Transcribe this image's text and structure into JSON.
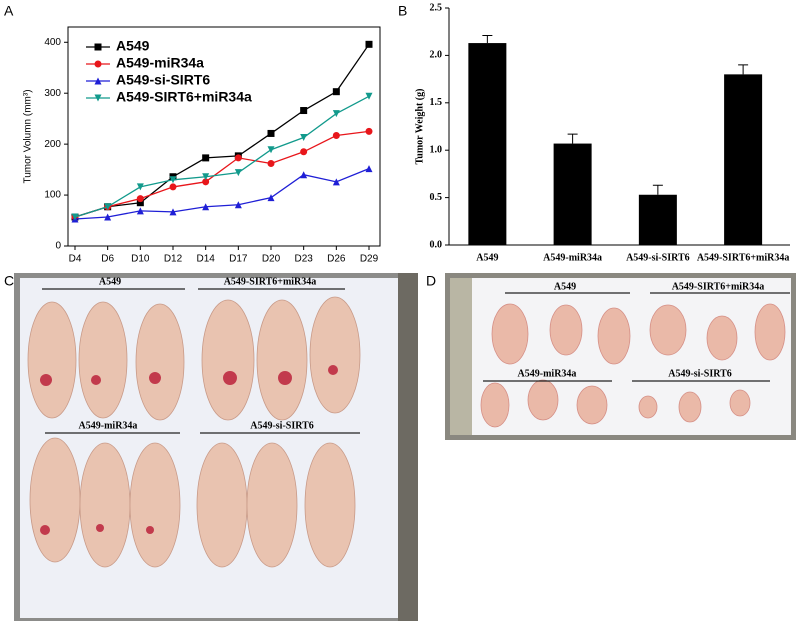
{
  "chart_data": [
    {
      "type": "line",
      "panel": "A",
      "y_label": "Tumor Volumn (mm³)",
      "categories": [
        "D4",
        "D6",
        "D10",
        "D12",
        "D14",
        "D17",
        "D20",
        "D23",
        "D26",
        "D29"
      ],
      "ylim": [
        0,
        430
      ],
      "yticks": [
        0,
        100,
        200,
        300,
        400
      ],
      "series": [
        {
          "name": "A549",
          "color": "#000000",
          "marker": "square",
          "values": [
            57,
            77,
            85,
            136,
            173,
            177,
            221,
            266,
            303,
            396
          ]
        },
        {
          "name": "A549-miR34a",
          "color": "#e8161b",
          "marker": "circle",
          "values": [
            57,
            77,
            93,
            116,
            126,
            173,
            162,
            185,
            217,
            225
          ]
        },
        {
          "name": "A549-si-SIRT6",
          "color": "#1f1fd6",
          "marker": "triangle-up",
          "values": [
            53,
            57,
            69,
            67,
            77,
            81,
            95,
            140,
            126,
            152
          ]
        },
        {
          "name": "A549-SIRT6+miR34a",
          "color": "#129a8c",
          "marker": "triangle-down",
          "values": [
            57,
            77,
            116,
            130,
            136,
            144,
            189,
            213,
            260,
            294
          ]
        }
      ]
    },
    {
      "type": "bar",
      "panel": "B",
      "y_label": "Tumor Weight (g)",
      "categories": [
        "A549",
        "A549-miR34a",
        "A549-si-SIRT6",
        "A549-SIRT6+miR34a"
      ],
      "values": [
        2.13,
        1.07,
        0.53,
        1.8
      ],
      "errors": [
        0.08,
        0.1,
        0.1,
        0.1
      ],
      "color": "#000000",
      "ylim": [
        0,
        2.5
      ],
      "yticks": [
        {
          "value": 0,
          "label": "0.0"
        },
        0.5,
        {
          "value": 1,
          "label": "1.0"
        },
        1.5,
        {
          "value": 2,
          "label": "2.0"
        },
        2.5
      ]
    }
  ],
  "photos": [
    {
      "panel": "C",
      "labels": [
        "A549",
        "A549-SIRT6+miR34a",
        "A549-miR34a",
        "A549-si-SIRT6"
      ]
    },
    {
      "panel": "D",
      "labels": [
        "A549",
        "A549-SIRT6+miR34a",
        "A549-miR34a",
        "A549-si-SIRT6"
      ]
    }
  ]
}
